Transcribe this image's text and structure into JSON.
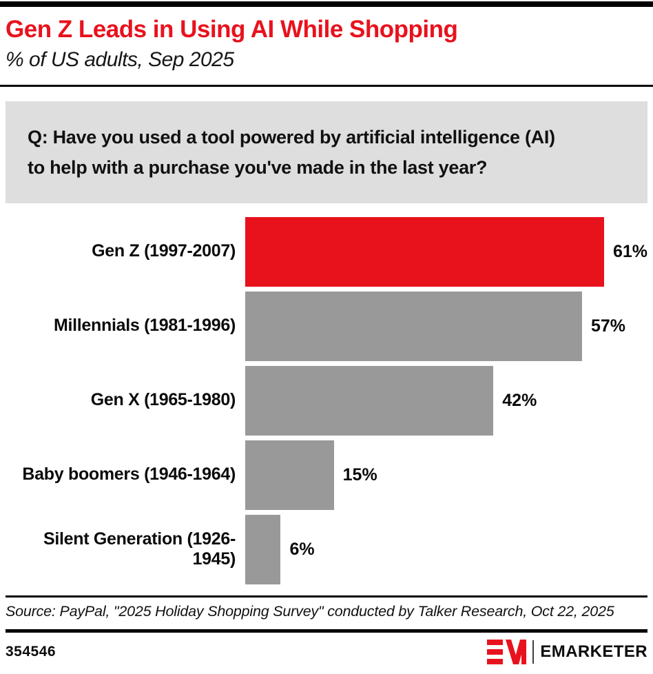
{
  "header": {
    "title": "Gen Z Leads in Using AI While Shopping",
    "subtitle": "% of US adults, Sep 2025"
  },
  "question": {
    "line1": "Q: Have you used a tool powered by artificial intelligence (AI)",
    "line2": "to help with a purchase you've made in the last year?"
  },
  "chart_data": {
    "type": "bar",
    "orientation": "horizontal",
    "title": "Gen Z Leads in Using AI While Shopping",
    "subtitle": "% of US adults, Sep 2025",
    "categories": [
      "Gen Z (1997-2007)",
      "Millennials (1981-1996)",
      "Gen X (1965-1980)",
      "Baby boomers (1946-1964)",
      "Silent Generation (1926-1945)"
    ],
    "values": [
      61,
      57,
      42,
      15,
      6
    ],
    "value_labels": [
      "61%",
      "57%",
      "42%",
      "15%",
      "6%"
    ],
    "bar_colors": [
      "#e8121d",
      "#999999",
      "#999999",
      "#999999",
      "#999999"
    ],
    "xlim": [
      0,
      65
    ],
    "grid": false,
    "legend": false,
    "value_label_position": "outside-end"
  },
  "footer": {
    "source": "Source: PayPal, \"2025 Holiday Shopping Survey\" conducted by Talker Research, Oct 22, 2025",
    "chart_id": "354546",
    "brand": "EMARKETER",
    "brand_mark": "em-logo-icon"
  },
  "colors": {
    "accent_red": "#e8121d",
    "bar_gray": "#999999",
    "question_bg": "#dedede",
    "rule_black": "#000000"
  }
}
